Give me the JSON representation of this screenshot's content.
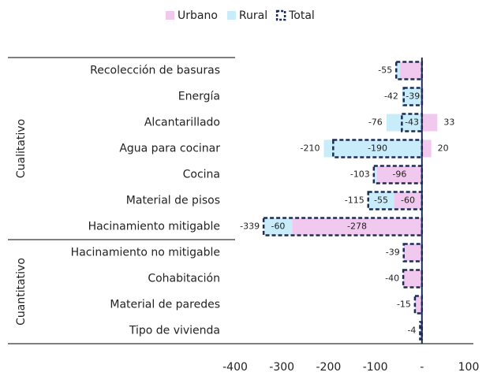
{
  "chart_data": {
    "type": "bar",
    "orientation": "horizontal",
    "stacked": true,
    "categories": [
      "Recolección de basuras",
      "Energía",
      "Alcantarillado",
      "Agua para cocinar",
      "Cocina",
      "Material de pisos",
      "Hacinamiento mitigable",
      "Hacinamiento no mitigable",
      "Cohabitación",
      "Material de paredes",
      "Tipo de vivienda"
    ],
    "groups": [
      {
        "name": "Cualitativo",
        "count": 7
      },
      {
        "name": "Cuantitativo",
        "count": 4
      }
    ],
    "series": [
      {
        "name": "Urbano",
        "color": "#f2c9ee",
        "values": [
          -47,
          3,
          33,
          20,
          -96,
          -60,
          -278,
          -39,
          -40,
          -15,
          -4
        ],
        "value_labels": [
          null,
          null,
          "33",
          "20",
          "-96",
          "-60",
          "-278",
          null,
          null,
          null,
          null
        ]
      },
      {
        "name": "Rural",
        "color": "#c9ecfa",
        "values": [
          -8,
          -42,
          -76,
          -210,
          -7,
          -55,
          -60,
          0,
          0,
          0,
          0
        ],
        "value_labels": [
          null,
          "-42",
          "-76",
          "-210",
          null,
          "-55",
          "-60",
          null,
          null,
          null,
          null
        ]
      },
      {
        "name": "Total",
        "color": "#1b2c55",
        "style": "dashed-outline",
        "values": [
          -55,
          -39,
          -43,
          -190,
          -103,
          -115,
          -339,
          -39,
          -40,
          -15,
          -4
        ],
        "value_labels": [
          "-55",
          "-39",
          "-43",
          "-190",
          "-103",
          "-115",
          "-339",
          "-39",
          "-40",
          "-15",
          "-4"
        ]
      }
    ],
    "xlim": [
      -400,
      100
    ],
    "xticks": [
      -400,
      -300,
      -200,
      -100,
      {
        "value": 0,
        "label": "-"
      },
      100
    ],
    "grid": false,
    "legend": "top"
  }
}
